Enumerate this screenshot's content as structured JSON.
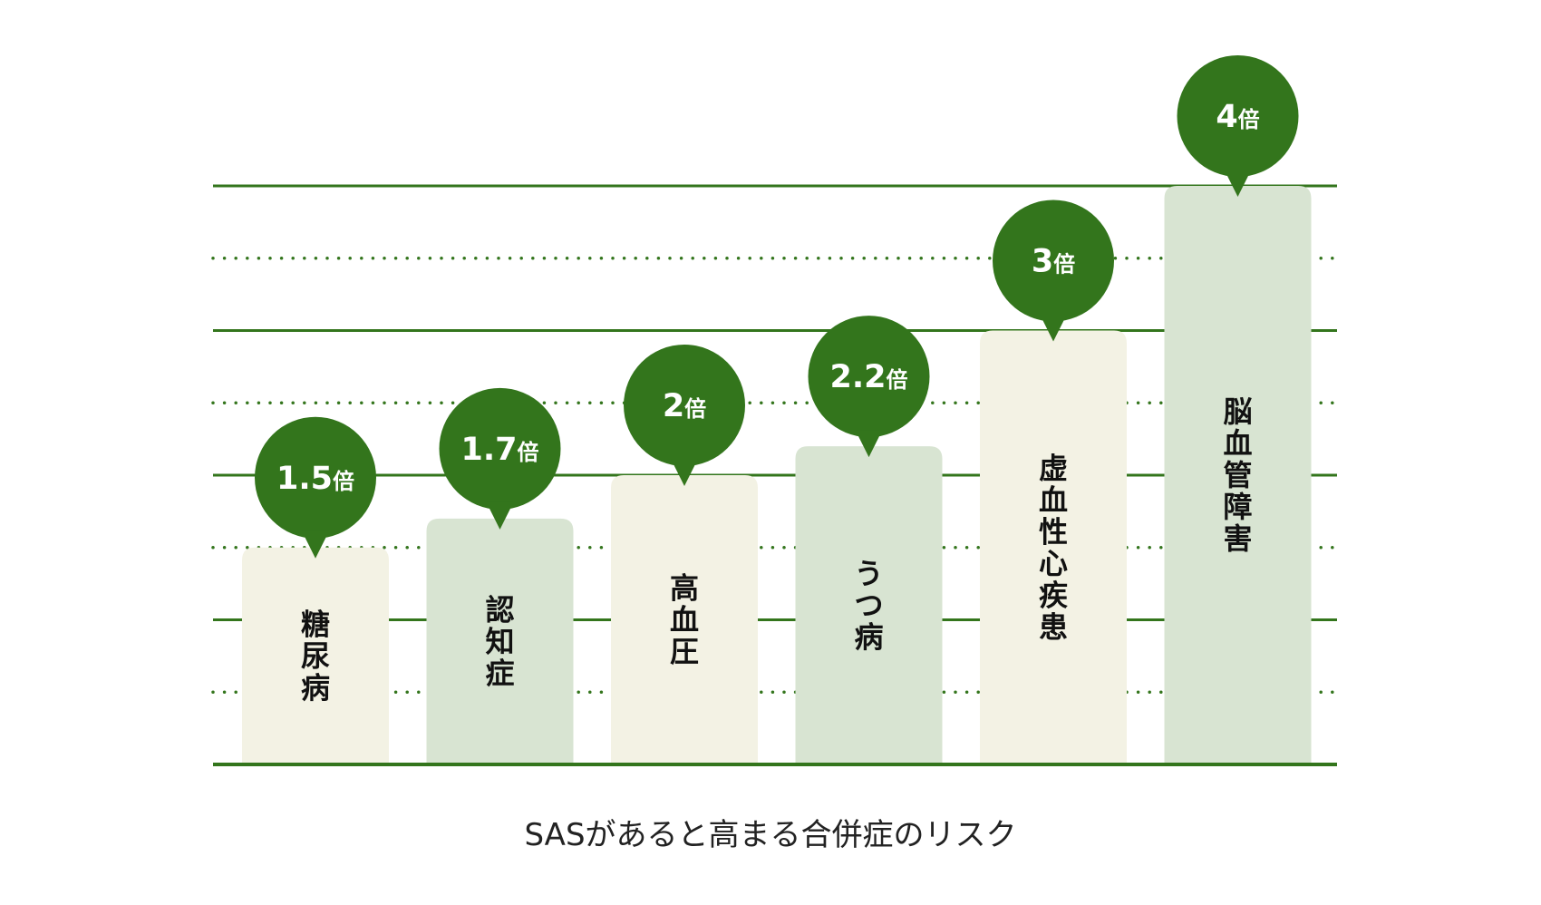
{
  "colors": {
    "grid": "#33751c",
    "bubble": "#33751c",
    "bar_a": "#f3f2e4",
    "bar_b": "#d8e4d2",
    "category_text": "#111111",
    "bubble_text": "#ffffff"
  },
  "chart_data": {
    "type": "bar",
    "categories": [
      "糖尿病",
      "認知症",
      "高血圧",
      "うつ病",
      "虚血性心疾患",
      "脳血管障害"
    ],
    "values": [
      1.5,
      1.7,
      2,
      2.2,
      3,
      4
    ],
    "data_labels": [
      "1.5",
      "1.7",
      "2",
      "2.2",
      "3",
      "4"
    ],
    "data_label_unit": "倍",
    "title": "",
    "xlabel": "SASがあると高まる合併症のリスク",
    "ylabel": "",
    "ylim": [
      0,
      4
    ],
    "grid": "solid major lines every 1 unit, dotted minor lines at half units",
    "legend": "none"
  }
}
